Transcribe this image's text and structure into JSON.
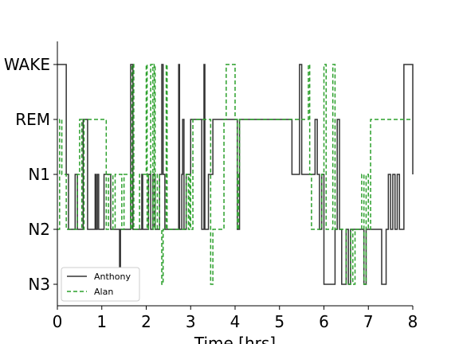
{
  "chart_data": {
    "type": "line",
    "title": "",
    "xlabel": "Time [hrs]",
    "ylabel": "",
    "xlim": [
      0,
      8
    ],
    "x_ticks": [
      "0",
      "1",
      "2",
      "3",
      "4",
      "5",
      "6",
      "7",
      "8"
    ],
    "y_categories": [
      "N3",
      "N2",
      "N1",
      "REM",
      "WAKE"
    ],
    "grid": false,
    "legend_position": "lower-left",
    "series": [
      {
        "name": "Anthony",
        "color": "#333333",
        "style": "solid",
        "x": [
          0.0,
          0.2,
          0.25,
          0.4,
          0.45,
          0.58,
          0.68,
          0.85,
          0.87,
          0.9,
          0.93,
          1.05,
          1.2,
          1.35,
          1.4,
          1.42,
          1.65,
          1.7,
          1.75,
          1.9,
          1.92,
          2.05,
          2.1,
          2.15,
          2.2,
          2.3,
          2.35,
          2.38,
          2.42,
          2.7,
          2.73,
          2.75,
          2.8,
          2.82,
          2.85,
          2.9,
          3.0,
          3.05,
          3.25,
          3.3,
          3.32,
          3.35,
          3.4,
          3.5,
          4.0,
          4.05,
          4.1,
          5.25,
          5.28,
          5.45,
          5.5,
          5.8,
          5.85,
          5.9,
          5.95,
          6.0,
          6.2,
          6.25,
          6.3,
          6.35,
          6.4,
          6.5,
          6.55,
          6.6,
          6.85,
          6.9,
          6.95,
          7.25,
          7.3,
          7.4,
          7.45,
          7.5,
          7.55,
          7.6,
          7.65,
          7.7,
          7.75,
          7.8,
          8.0,
          8.0
        ],
        "y": [
          "WAKE",
          "N1",
          "N2",
          "N1",
          "N2",
          "REM",
          "N2",
          "N1",
          "N2",
          "N1",
          "N2",
          "N1",
          "N2",
          "N2",
          "N3",
          "N2",
          "WAKE",
          "N2",
          "N2",
          "N1",
          "N2",
          "N1",
          "N2",
          "N1",
          "N2",
          "N1",
          "WAKE",
          "N1",
          "N2",
          "N2",
          "WAKE",
          "N2",
          "N1",
          "REM",
          "N2",
          "N1",
          "REM",
          "REM",
          "N2",
          "WAKE",
          "N2",
          "N2",
          "N1",
          "REM",
          "REM",
          "N2",
          "REM",
          "REM",
          "N1",
          "WAKE",
          "N1",
          "REM",
          "N1",
          "N2",
          "N1",
          "N3",
          "N3",
          "N2",
          "REM",
          "N2",
          "N3",
          "N2",
          "N3",
          "N2",
          "N2",
          "N3",
          "N2",
          "N2",
          "N3",
          "N2",
          "N1",
          "N2",
          "N1",
          "N2",
          "N1",
          "N2",
          "N2",
          "WAKE",
          "N1",
          "N1"
        ]
      },
      {
        "name": "Alan",
        "color": "#2ca02c",
        "style": "dashed",
        "x": [
          0.0,
          0.05,
          0.1,
          0.2,
          0.25,
          0.45,
          0.5,
          0.55,
          0.6,
          1.05,
          1.1,
          1.15,
          1.2,
          1.25,
          1.3,
          1.4,
          1.45,
          1.5,
          1.65,
          1.68,
          1.72,
          1.8,
          1.85,
          2.0,
          2.02,
          2.05,
          2.1,
          2.15,
          2.18,
          2.2,
          2.25,
          2.3,
          2.35,
          2.38,
          2.45,
          2.47,
          2.5,
          2.52,
          2.55,
          2.9,
          2.95,
          2.98,
          3.0,
          3.05,
          3.45,
          3.5,
          3.7,
          3.75,
          3.8,
          4.0,
          4.05,
          4.08,
          4.1,
          5.6,
          5.65,
          5.68,
          5.72,
          5.9,
          5.95,
          6.0,
          6.05,
          6.1,
          6.2,
          6.25,
          6.3,
          6.5,
          6.55,
          6.6,
          6.65,
          6.7,
          6.8,
          6.85,
          6.9,
          6.95,
          7.0,
          7.05,
          8.0
        ],
        "y": [
          "N2",
          "REM",
          "N1",
          "N2",
          "N2",
          "N1",
          "REM",
          "N2",
          "REM",
          "REM",
          "N2",
          "N1",
          "N1",
          "N2",
          "N1",
          "N1",
          "N2",
          "N1",
          "N2",
          "WAKE",
          "N2",
          "N2",
          "N1",
          "WAKE",
          "N2",
          "N1",
          "WAKE",
          "N2",
          "WAKE",
          "N2",
          "N1",
          "N2",
          "N3",
          "N2",
          "WAKE",
          "N2",
          "N2",
          "N2",
          "N2",
          "N1",
          "N2",
          "N1",
          "N2",
          "REM",
          "N3",
          "N2",
          "N2",
          "REM",
          "WAKE",
          "REM",
          "N2",
          "N1",
          "REM",
          "REM",
          "WAKE",
          "N1",
          "N2",
          "N2",
          "N1",
          "WAKE",
          "N2",
          "N2",
          "WAKE",
          "N2",
          "N2",
          "N3",
          "N3",
          "N2",
          "N3",
          "N2",
          "N2",
          "N1",
          "N3",
          "N1",
          "N2",
          "REM",
          "REM"
        ]
      }
    ]
  }
}
